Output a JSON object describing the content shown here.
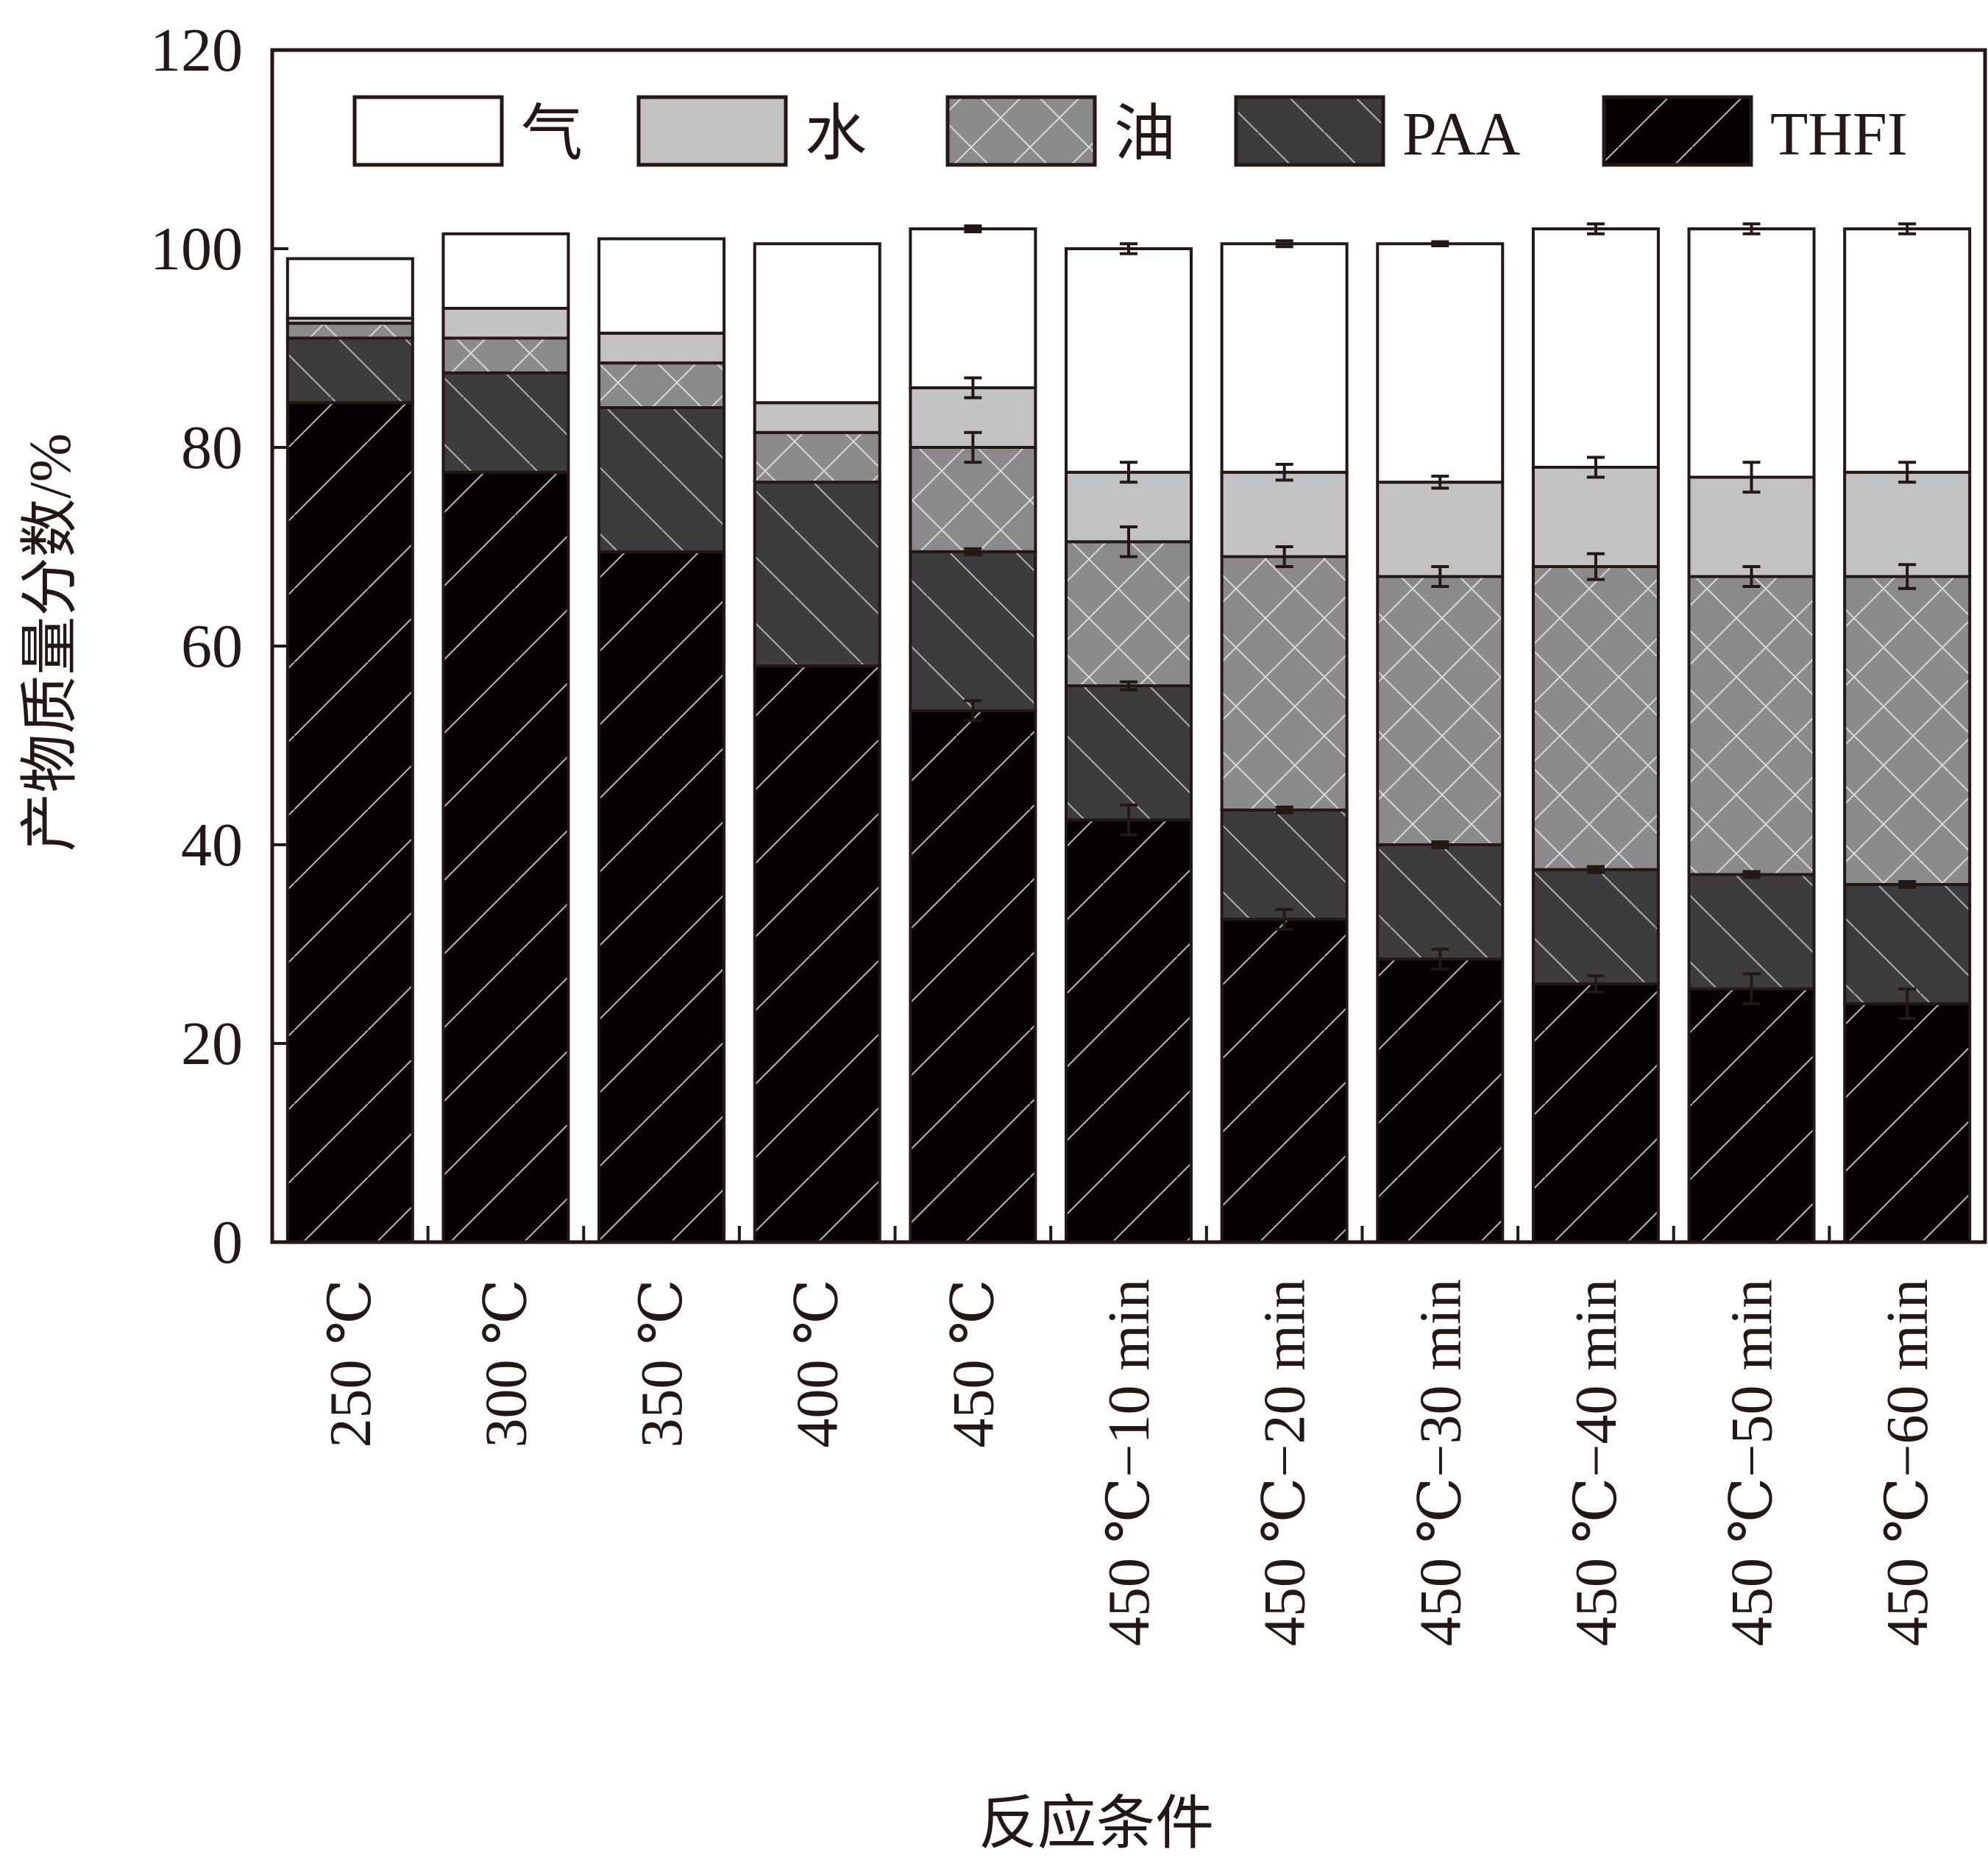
{
  "chart_data": {
    "type": "bar",
    "stacked": true,
    "xlabel": "反应条件",
    "ylabel": "产物质量分数/%",
    "ylim": [
      0,
      120
    ],
    "yticks": [
      0,
      20,
      40,
      60,
      80,
      100,
      120
    ],
    "grid": false,
    "legend_position": "top, inside plot",
    "categories": [
      "250 ℃",
      "300 ℃",
      "350 ℃",
      "400 ℃",
      "450 ℃",
      "450 ℃−10 min",
      "450 ℃−20 min",
      "450 ℃−30 min",
      "450 ℃−40 min",
      "450 ℃−50 min",
      "450 ℃−60 min"
    ],
    "series": [
      {
        "name": "THFI",
        "color": "#050102",
        "pattern": "diag-fwd",
        "values": [
          84.5,
          77.5,
          69.5,
          58.0,
          53.5,
          42.5,
          32.5,
          28.5,
          26.0,
          25.5,
          24.0
        ],
        "error": [
          0,
          0,
          0,
          0,
          1.0,
          1.5,
          1.0,
          1.0,
          0.8,
          1.5,
          1.5
        ]
      },
      {
        "name": "PAA",
        "color": "#3c3c3c",
        "pattern": "diag-back",
        "values": [
          6.5,
          10.0,
          14.5,
          18.5,
          16.0,
          13.5,
          11.0,
          11.5,
          11.5,
          11.5,
          12.0
        ],
        "error": [
          0,
          0,
          0,
          0,
          0.3,
          0.4,
          0.3,
          0.3,
          0.3,
          0.3,
          0.3
        ]
      },
      {
        "name": "油",
        "color": "#8a8a8a",
        "pattern": "cross",
        "values": [
          1.5,
          3.5,
          4.5,
          5.0,
          10.5,
          14.5,
          25.5,
          27.0,
          30.5,
          30.0,
          31.0
        ],
        "error": [
          0,
          0,
          0,
          0,
          1.5,
          1.5,
          1.0,
          1.0,
          1.3,
          1.0,
          1.2
        ]
      },
      {
        "name": "水",
        "color": "#c2c2c2",
        "pattern": "none",
        "values": [
          0.5,
          3.0,
          3.0,
          3.0,
          6.0,
          7.0,
          8.5,
          9.5,
          10.0,
          10.0,
          10.5
        ],
        "error": [
          0,
          0,
          0,
          0,
          1.0,
          1.0,
          0.8,
          0.6,
          1.0,
          1.5,
          1.0
        ]
      },
      {
        "name": "气",
        "color": "#ffffff",
        "pattern": "none",
        "values": [
          6.0,
          7.5,
          9.5,
          16.0,
          16.0,
          22.5,
          23.0,
          24.0,
          24.0,
          25.0,
          24.5
        ],
        "error": [
          0,
          0,
          0,
          0,
          0.3,
          0.5,
          0.3,
          0.2,
          0.5,
          0.5,
          0.5
        ]
      }
    ],
    "legend": [
      {
        "name": "气",
        "color": "#ffffff",
        "pattern": "none"
      },
      {
        "name": "水",
        "color": "#c2c2c2",
        "pattern": "none"
      },
      {
        "name": "油",
        "color": "#8a8a8a",
        "pattern": "cross"
      },
      {
        "name": "PAA",
        "color": "#3c3c3c",
        "pattern": "diag-back"
      },
      {
        "name": "THFI",
        "color": "#050102",
        "pattern": "diag-fwd"
      }
    ]
  }
}
